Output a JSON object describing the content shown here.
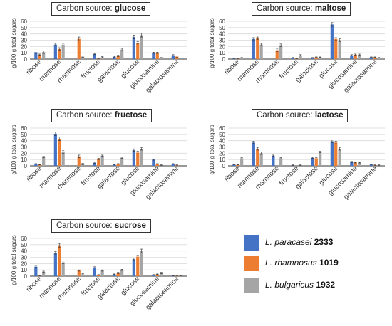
{
  "colors": {
    "series": [
      "#4472C4",
      "#ED7D31",
      "#A5A5A5"
    ],
    "grid": "#d9d9d9",
    "axis": "#333333",
    "text": "#333333"
  },
  "legend": [
    {
      "species": "L. paracasei",
      "strain": "2333"
    },
    {
      "species": "L. rhamnosus",
      "strain": "1019"
    },
    {
      "species": "L. bulgaricus",
      "strain": "1932"
    }
  ],
  "chart_data": [
    {
      "type": "bar",
      "title_prefix": "Carbon source: ",
      "title_sugar": "glucose",
      "ylabel": "g/100 g total sugars",
      "ylim": [
        0,
        60
      ],
      "yticks": [
        "0",
        "10",
        "20",
        "30",
        "40",
        "50",
        "60"
      ],
      "grid": true,
      "categories": [
        "ribose",
        "mannose",
        "rhamnose",
        "fructose",
        "galactose",
        "glucose",
        "glucosamine",
        "galactosamine"
      ],
      "series": [
        {
          "name": "L. paracasei 2333",
          "values": [
            11,
            23,
            0,
            8,
            4,
            35,
            10,
            6
          ],
          "errors": [
            2,
            2,
            0,
            1,
            1,
            3,
            1,
            1
          ]
        },
        {
          "name": "L. rhamnosus 1019",
          "values": [
            7,
            16,
            32,
            1,
            5,
            26,
            10,
            4
          ],
          "errors": [
            1,
            2,
            3,
            0.5,
            1,
            2,
            1,
            1
          ]
        },
        {
          "name": "L. bulgaricus 1932",
          "values": [
            11,
            23,
            4,
            3,
            15,
            38,
            2,
            0
          ],
          "errors": [
            2,
            2,
            1,
            1,
            2,
            3,
            0.5,
            0
          ]
        }
      ]
    },
    {
      "type": "bar",
      "title_prefix": "Carbon source: ",
      "title_sugar": "maltose",
      "ylabel": "g/100 g total sugars",
      "ylim": [
        0,
        60
      ],
      "yticks": [
        "0",
        "10",
        "20",
        "30",
        "40",
        "50",
        "60"
      ],
      "grid": true,
      "categories": [
        "ribose",
        "mannose",
        "rhamnose",
        "fructose",
        "galactose",
        "glucose",
        "glucosamine",
        "galactosamine"
      ],
      "series": [
        {
          "name": "L. paracasei 2333",
          "values": [
            1,
            32,
            0,
            2,
            2,
            55,
            6,
            3
          ],
          "errors": [
            0.5,
            2,
            0,
            0.5,
            0.5,
            3,
            1,
            0.5
          ]
        },
        {
          "name": "L. rhamnosus 1019",
          "values": [
            1,
            33,
            14,
            1,
            3,
            32,
            7,
            3
          ],
          "errors": [
            0.5,
            2,
            2,
            0.5,
            0.5,
            2,
            1,
            0.5
          ]
        },
        {
          "name": "L. bulgaricus 1932",
          "values": [
            2,
            23,
            22,
            6,
            3,
            30,
            7,
            2
          ],
          "errors": [
            0.5,
            2,
            2,
            1,
            0.5,
            2,
            1,
            0.5
          ]
        }
      ]
    },
    {
      "type": "bar",
      "title_prefix": "Carbon source: ",
      "title_sugar": "fructose",
      "ylabel": "g/100 g total sugars",
      "ylim": [
        0,
        60
      ],
      "yticks": [
        "0",
        "10",
        "20",
        "30",
        "40",
        "50",
        "60"
      ],
      "grid": true,
      "categories": [
        "ribose",
        "mannose",
        "rhamnose",
        "fructose",
        "galactose",
        "glucose",
        "glucosamine",
        "galactosamine"
      ],
      "series": [
        {
          "name": "L. paracasei 2333",
          "values": [
            3,
            51,
            0,
            5,
            2,
            25,
            10,
            3
          ],
          "errors": [
            0.5,
            3,
            0,
            1,
            0.5,
            2,
            1,
            0.5
          ]
        },
        {
          "name": "L. rhamnosus 1019",
          "values": [
            2,
            43,
            15,
            11,
            3,
            21,
            3,
            1
          ],
          "errors": [
            0.5,
            3,
            2,
            1,
            0.5,
            2,
            0.5,
            0.5
          ]
        },
        {
          "name": "L. bulgaricus 1932",
          "values": [
            14,
            22,
            3,
            16,
            13,
            27,
            1,
            0
          ],
          "errors": [
            1,
            2,
            1,
            1,
            1,
            2,
            0.5,
            0
          ]
        }
      ]
    },
    {
      "type": "bar",
      "title_prefix": "Carbon source: ",
      "title_sugar": "lactose",
      "ylabel": "g/100 g total sugars",
      "ylim": [
        0,
        60
      ],
      "yticks": [
        "0",
        "10",
        "20",
        "30",
        "40",
        "50",
        "60"
      ],
      "grid": true,
      "categories": [
        "ribose",
        "mannose",
        "rhamnose",
        "fructose",
        "galactose",
        "glucose",
        "glucosamine",
        "galactosamine"
      ],
      "series": [
        {
          "name": "L. paracasei 2333",
          "values": [
            2,
            37,
            16,
            1,
            13,
            39,
            6,
            2
          ],
          "errors": [
            0.5,
            2,
            1,
            0.5,
            1,
            2,
            1,
            0.5
          ]
        },
        {
          "name": "L. rhamnosus 1019",
          "values": [
            2,
            27,
            0,
            0,
            12,
            37,
            5,
            1
          ],
          "errors": [
            0.5,
            2,
            0,
            0,
            1,
            2,
            0.5,
            0.5
          ]
        },
        {
          "name": "L. bulgaricus 1932",
          "values": [
            12,
            20,
            12,
            1,
            22,
            27,
            5,
            1
          ],
          "errors": [
            1,
            2,
            1,
            0.5,
            1,
            2,
            0.5,
            0.5
          ]
        }
      ]
    },
    {
      "type": "bar",
      "title_prefix": "Carbon source: ",
      "title_sugar": "sucrose",
      "ylabel": "g/100 g total sugars",
      "ylim": [
        0,
        60
      ],
      "yticks": [
        "0",
        "10",
        "20",
        "30",
        "40",
        "50",
        "60"
      ],
      "grid": true,
      "categories": [
        "ribose",
        "mannose",
        "rhamnose",
        "fructose",
        "galactose",
        "glucose",
        "glucosamine",
        "galactosamine"
      ],
      "series": [
        {
          "name": "L. paracasei 2333",
          "values": [
            15,
            37,
            0,
            14,
            3,
            27,
            2,
            1
          ],
          "errors": [
            1,
            2,
            0,
            1,
            0.5,
            2,
            0.5,
            0.5
          ]
        },
        {
          "name": "L. rhamnosus 1019",
          "values": [
            1,
            49,
            9,
            2,
            5,
            31,
            3,
            1
          ],
          "errors": [
            0.5,
            3,
            1,
            0.5,
            1,
            2,
            0.5,
            0.5
          ]
        },
        {
          "name": "L. bulgaricus 1932",
          "values": [
            7,
            22,
            3,
            9,
            10,
            40,
            5,
            1
          ],
          "errors": [
            1,
            2,
            1,
            1,
            1,
            3,
            1,
            0.5
          ]
        }
      ]
    }
  ]
}
